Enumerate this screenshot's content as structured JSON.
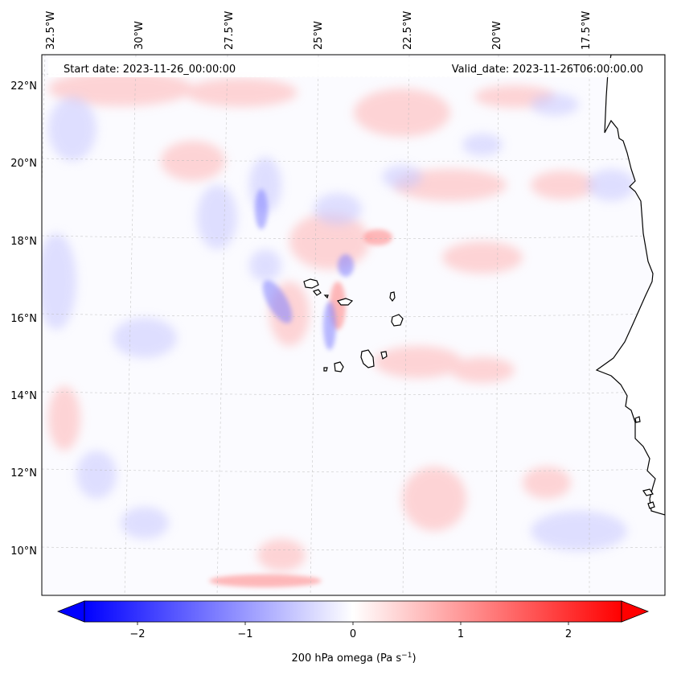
{
  "header": {
    "start_date": "Start date: 2023-11-26_00:00:00",
    "valid_date": "Valid_date: 2023-11-26T06:00:00.00"
  },
  "longitude_labels": [
    "32.5°W",
    "30°W",
    "27.5°W",
    "25°W",
    "22.5°W",
    "20°W",
    "17.5°W"
  ],
  "latitude_labels": [
    "22°N",
    "20°N",
    "18°N",
    "16°N",
    "14°N",
    "12°N",
    "10°N"
  ],
  "colorbar": {
    "ticks": [
      "−2",
      "−1",
      "0",
      "1",
      "2"
    ],
    "label": "200 hPa omega (Pa s",
    "label_sup": "−1",
    "label_end": ")",
    "range": [
      -2.6,
      2.6
    ],
    "cmap": "bwr",
    "colors": {
      "negative": "#0000ff",
      "zero": "#ffffff",
      "positive": "#ff0000"
    }
  },
  "map": {
    "projection": "Lambert conformal",
    "lon_range": [
      -33,
      -16
    ],
    "lat_range": [
      9,
      23
    ],
    "gridlines": true,
    "features": [
      "Cape Verde islands",
      "West African coastline"
    ]
  }
}
